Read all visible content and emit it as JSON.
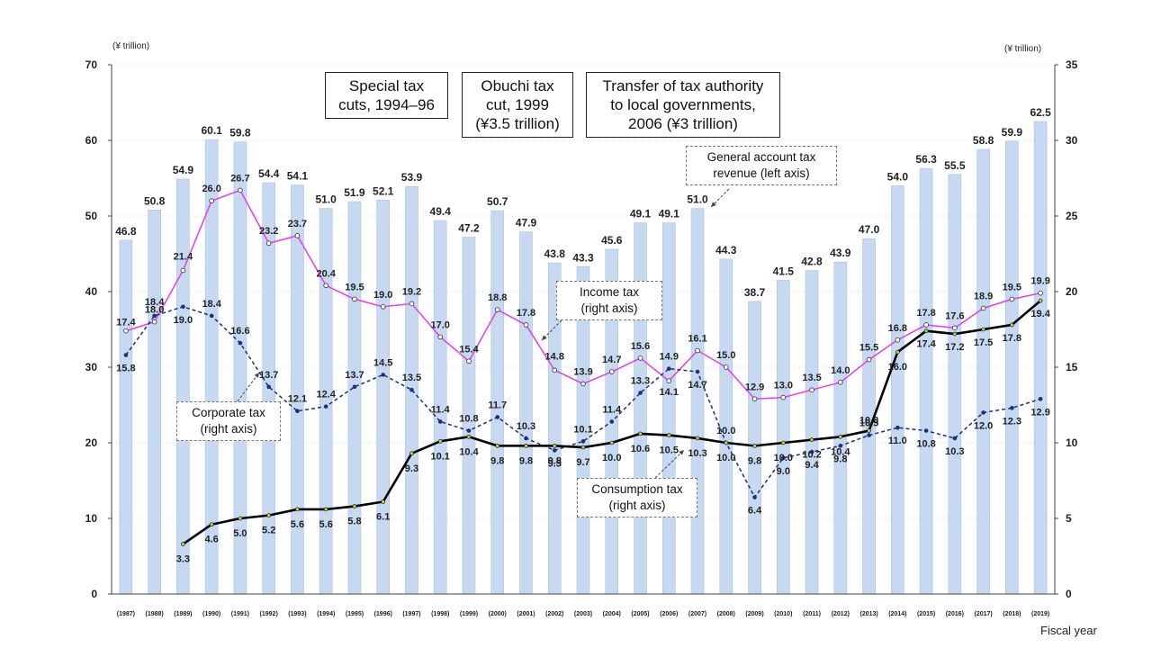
{
  "units": {
    "left": "(¥ trillion)",
    "right": "(¥ trillion)"
  },
  "xlabel": "Fiscal year",
  "callouts": {
    "special": "Special tax\ncuts, 1994–96",
    "obuchi": "Obuchi tax\ncut, 1999\n(¥3.5 trillion)",
    "transfer": "Transfer of tax authority\nto local governments,\n2006 (¥3 trillion)",
    "general": "General account tax\nrevenue (left axis)",
    "income": "Income tax\n(right axis)",
    "corporate": "Corporate tax\n(right axis)",
    "consumption": "Consumption tax\n(right axis)"
  },
  "colors": {
    "bar": "#c6d9f1",
    "bar_edge": "#a9c2e6",
    "income": "#e63ce6",
    "corporate": "#1f2e7a",
    "consumption": "#000000",
    "grid": "#d9e9ea"
  },
  "chart_data": {
    "type": "bar",
    "categories": [
      "(1987)",
      "(1988)",
      "(1989)",
      "(1990)",
      "(1991)",
      "(1992)",
      "(1993)",
      "(1994)",
      "(1995)",
      "(1996)",
      "(1997)",
      "(1998)",
      "(1999)",
      "(2000)",
      "(2001)",
      "(2002)",
      "(2003)",
      "(2004)",
      "(2005)",
      "(2006)",
      "(2007)",
      "(2008)",
      "(2009)",
      "(2010)",
      "(2011)",
      "(2012)",
      "(2013)",
      "(2014)",
      "(2015)",
      "(2016)",
      "(2017)",
      "(2018)",
      "(2019)"
    ],
    "left_axis": {
      "ylim": [
        0,
        70
      ],
      "ticks": [
        0,
        10,
        20,
        30,
        40,
        50,
        60,
        70
      ]
    },
    "right_axis": {
      "ylim": [
        0,
        35
      ],
      "ticks": [
        0,
        5,
        10,
        15,
        20,
        25,
        30,
        35
      ]
    },
    "xlabel": "Fiscal year",
    "grid": true,
    "series": [
      {
        "name": "General account tax revenue (left axis)",
        "type": "bar",
        "axis": "left",
        "values": [
          46.8,
          50.8,
          54.9,
          60.1,
          59.8,
          54.4,
          54.1,
          51.0,
          51.9,
          52.1,
          53.9,
          49.4,
          47.2,
          50.7,
          47.9,
          43.8,
          43.3,
          45.6,
          49.1,
          49.1,
          51.0,
          44.3,
          38.7,
          41.5,
          42.8,
          43.9,
          47.0,
          54.0,
          56.3,
          55.5,
          58.8,
          59.9,
          62.5
        ]
      },
      {
        "name": "Income tax (right axis)",
        "type": "line",
        "axis": "right",
        "values": [
          17.4,
          18.0,
          21.4,
          26.0,
          26.7,
          23.2,
          23.7,
          20.4,
          19.5,
          19.0,
          19.2,
          17.0,
          15.4,
          18.8,
          17.8,
          14.8,
          13.9,
          14.7,
          15.6,
          14.1,
          16.1,
          15.0,
          12.9,
          13.0,
          13.5,
          14.0,
          15.5,
          16.8,
          17.8,
          17.6,
          18.9,
          19.5,
          19.9
        ]
      },
      {
        "name": "Corporate tax (right axis)",
        "type": "line",
        "axis": "right",
        "values": [
          15.8,
          18.4,
          19.0,
          18.4,
          16.6,
          13.7,
          12.1,
          12.4,
          13.7,
          14.5,
          13.5,
          11.4,
          10.8,
          11.7,
          10.3,
          9.5,
          10.1,
          11.4,
          13.3,
          14.9,
          14.7,
          10.0,
          6.4,
          9.0,
          9.4,
          9.8,
          10.5,
          11.0,
          10.8,
          10.3,
          12.0,
          12.3,
          12.9
        ]
      },
      {
        "name": "Consumption tax (right axis)",
        "type": "line",
        "axis": "right",
        "values": [
          null,
          null,
          3.3,
          4.6,
          5.0,
          5.2,
          5.6,
          5.6,
          5.8,
          6.1,
          9.3,
          10.1,
          10.4,
          9.8,
          9.8,
          9.8,
          9.7,
          10.0,
          10.6,
          10.5,
          10.3,
          10.0,
          9.8,
          10.0,
          10.2,
          10.4,
          10.8,
          16.0,
          17.4,
          17.2,
          17.5,
          17.8,
          19.4
        ]
      }
    ]
  }
}
